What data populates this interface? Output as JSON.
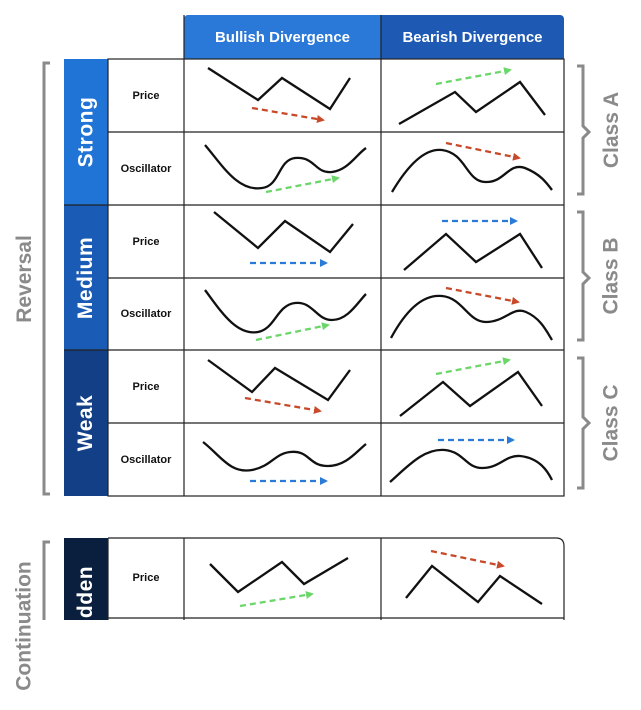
{
  "columns": {
    "bullish": "Bullish Divergence",
    "bearish": "Bearish Divergence"
  },
  "groups": {
    "reversal": "Reversal",
    "continuation": "Continuation"
  },
  "strengths": {
    "strong": "Strong",
    "medium": "Medium",
    "weak": "Weak",
    "hidden": "Hidden"
  },
  "rows": {
    "price": "Price",
    "oscillator": "Oscillator"
  },
  "classes": {
    "a": "Class A",
    "b": "Class B",
    "c": "Class C"
  },
  "colors": {
    "header_bullish": "#2a78d8",
    "header_bearish": "#1e5ab4",
    "strong": "#1f74d6",
    "medium": "#1a5bb6",
    "weak": "#123f86",
    "hidden": "#0a1f3e",
    "arrow_green": "#6bd66a",
    "arrow_red": "#c94a2a",
    "arrow_blue": "#2a7ad8",
    "bracket_gray": "#8a8a8a"
  },
  "arrow_legend": {
    "green": "higher",
    "red": "lower",
    "blue": "equal"
  }
}
